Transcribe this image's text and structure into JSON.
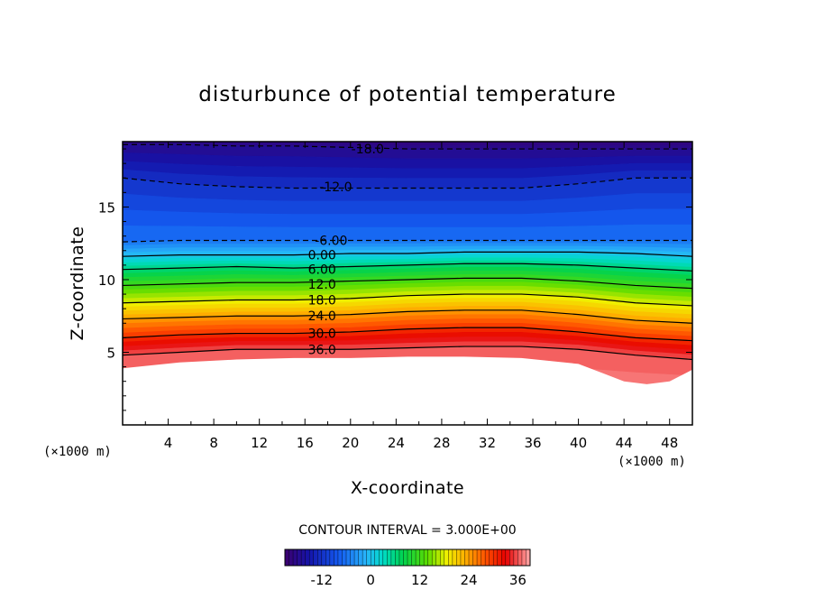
{
  "chart_data": {
    "type": "contour",
    "title": "disturbunce of potential temperature",
    "xlabel": "X-coordinate",
    "ylabel": "Z-coordinate",
    "x_unit": "(×1000 m)",
    "y_unit": "(×1000 m)",
    "xlim": [
      0,
      50
    ],
    "ylim": [
      0,
      19.5
    ],
    "x_ticks": [
      4,
      8,
      12,
      16,
      20,
      24,
      28,
      32,
      36,
      40,
      44,
      48
    ],
    "y_ticks": [
      5,
      10,
      15
    ],
    "contour_interval_label": "CONTOUR INTERVAL = 3.000E+00",
    "contour_interval": 3,
    "value_range": [
      -21,
      39
    ],
    "colorbar_ticks": [
      -12,
      0,
      12,
      24,
      36
    ],
    "contour_labels": [
      {
        "text": "-18.0",
        "x": 21.5,
        "z": 19.0
      },
      {
        "text": "-12.0",
        "x": 18.7,
        "z": 16.4
      },
      {
        "text": "-6.00",
        "x": 18.3,
        "z": 12.7
      },
      {
        "text": "0.00",
        "x": 17.5,
        "z": 11.7
      },
      {
        "text": "6.00",
        "x": 17.5,
        "z": 10.7
      },
      {
        "text": "12.0",
        "x": 17.5,
        "z": 9.7
      },
      {
        "text": "18.0",
        "x": 17.5,
        "z": 8.6
      },
      {
        "text": "24.0",
        "x": 17.5,
        "z": 7.5
      },
      {
        "text": "30.0",
        "x": 17.5,
        "z": 6.3
      },
      {
        "text": "36.0",
        "x": 17.5,
        "z": 5.2
      }
    ],
    "levels": [
      {
        "value": -18,
        "z": [
          19.3,
          19.3,
          19.2,
          19.2,
          19.1,
          19.0,
          19.0,
          19.0,
          19.0,
          19.0,
          19.0
        ]
      },
      {
        "value": -12,
        "z": [
          17.0,
          16.6,
          16.4,
          16.3,
          16.3,
          16.3,
          16.3,
          16.3,
          16.6,
          17.0,
          17.0
        ]
      },
      {
        "value": -6,
        "z": [
          12.6,
          12.7,
          12.7,
          12.7,
          12.7,
          12.7,
          12.7,
          12.7,
          12.7,
          12.7,
          12.7
        ]
      },
      {
        "value": 0,
        "z": [
          11.6,
          11.7,
          11.7,
          11.7,
          11.8,
          11.8,
          11.9,
          11.9,
          11.9,
          11.8,
          11.6
        ]
      },
      {
        "value": 6,
        "z": [
          10.7,
          10.8,
          10.9,
          10.8,
          10.9,
          11.0,
          11.1,
          11.1,
          11.0,
          10.8,
          10.6
        ]
      },
      {
        "value": 12,
        "z": [
          9.6,
          9.7,
          9.8,
          9.8,
          9.9,
          10.0,
          10.1,
          10.1,
          9.9,
          9.6,
          9.4
        ]
      },
      {
        "value": 18,
        "z": [
          8.4,
          8.5,
          8.6,
          8.6,
          8.7,
          8.9,
          9.0,
          9.0,
          8.8,
          8.4,
          8.2
        ]
      },
      {
        "value": 24,
        "z": [
          7.3,
          7.4,
          7.5,
          7.5,
          7.6,
          7.8,
          7.9,
          7.9,
          7.6,
          7.2,
          7.0
        ]
      },
      {
        "value": 30,
        "z": [
          6.0,
          6.2,
          6.3,
          6.3,
          6.4,
          6.6,
          6.7,
          6.7,
          6.4,
          6.0,
          5.8
        ]
      },
      {
        "value": 36,
        "z": [
          4.8,
          5.0,
          5.2,
          5.2,
          5.2,
          5.3,
          5.4,
          5.4,
          5.2,
          4.8,
          4.5
        ]
      }
    ],
    "terrain": {
      "x": [
        0,
        5,
        10,
        15,
        20,
        25,
        30,
        35,
        40,
        42,
        44,
        46,
        48,
        50
      ],
      "z": [
        3.9,
        4.3,
        4.5,
        4.6,
        4.6,
        4.7,
        4.7,
        4.6,
        4.2,
        3.6,
        3.0,
        2.8,
        3.0,
        3.8
      ]
    }
  }
}
